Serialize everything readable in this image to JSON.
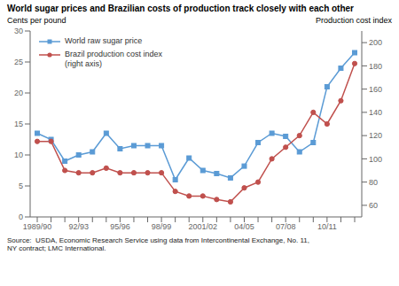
{
  "chart_data": {
    "type": "line",
    "title": "World sugar prices and Brazilian costs of production track closely with each other",
    "ylabel": "Cents per pound",
    "y2label": "Production cost index",
    "source": "Source:  USDA, Economic Research Service using data from Intercontinental Exchange, No. 11,\nNY contract; LMC International.",
    "categories": [
      "1989/90",
      null,
      null,
      "92/93",
      null,
      null,
      "95/96",
      null,
      null,
      "98/99",
      null,
      null,
      "2001/02",
      null,
      null,
      "04/05",
      null,
      null,
      "07/08",
      null,
      null,
      "10/11",
      null,
      null
    ],
    "series": [
      {
        "name": "World raw sugar price",
        "color": "#5b9bd5",
        "marker": "square",
        "values": [
          13.5,
          12.5,
          9.0,
          10.0,
          10.5,
          13.5,
          11.0,
          11.5,
          11.5,
          11.5,
          6.0,
          9.5,
          7.5,
          7.0,
          6.3,
          8.2,
          12.0,
          13.5,
          13.0,
          10.5,
          12.0,
          21.0,
          24.0,
          26.5
        ]
      },
      {
        "name": "Brazil production cost index\n(right axis)",
        "color": "#c0504d",
        "marker": "circle",
        "axis": "y2",
        "values": [
          115,
          115,
          90,
          88,
          88,
          92,
          88,
          88,
          88,
          88,
          72,
          68,
          68,
          65,
          63,
          75,
          80,
          100,
          110,
          120,
          140,
          130,
          150,
          182
        ]
      }
    ],
    "ylim": [
      0,
      30
    ],
    "yticks": [
      0,
      5,
      10,
      15,
      20,
      25,
      30
    ],
    "y2lim": [
      50,
      210
    ],
    "y2ticks": [
      60,
      80,
      100,
      120,
      140,
      160,
      180,
      200
    ],
    "legend": "upper left",
    "grid": false
  }
}
